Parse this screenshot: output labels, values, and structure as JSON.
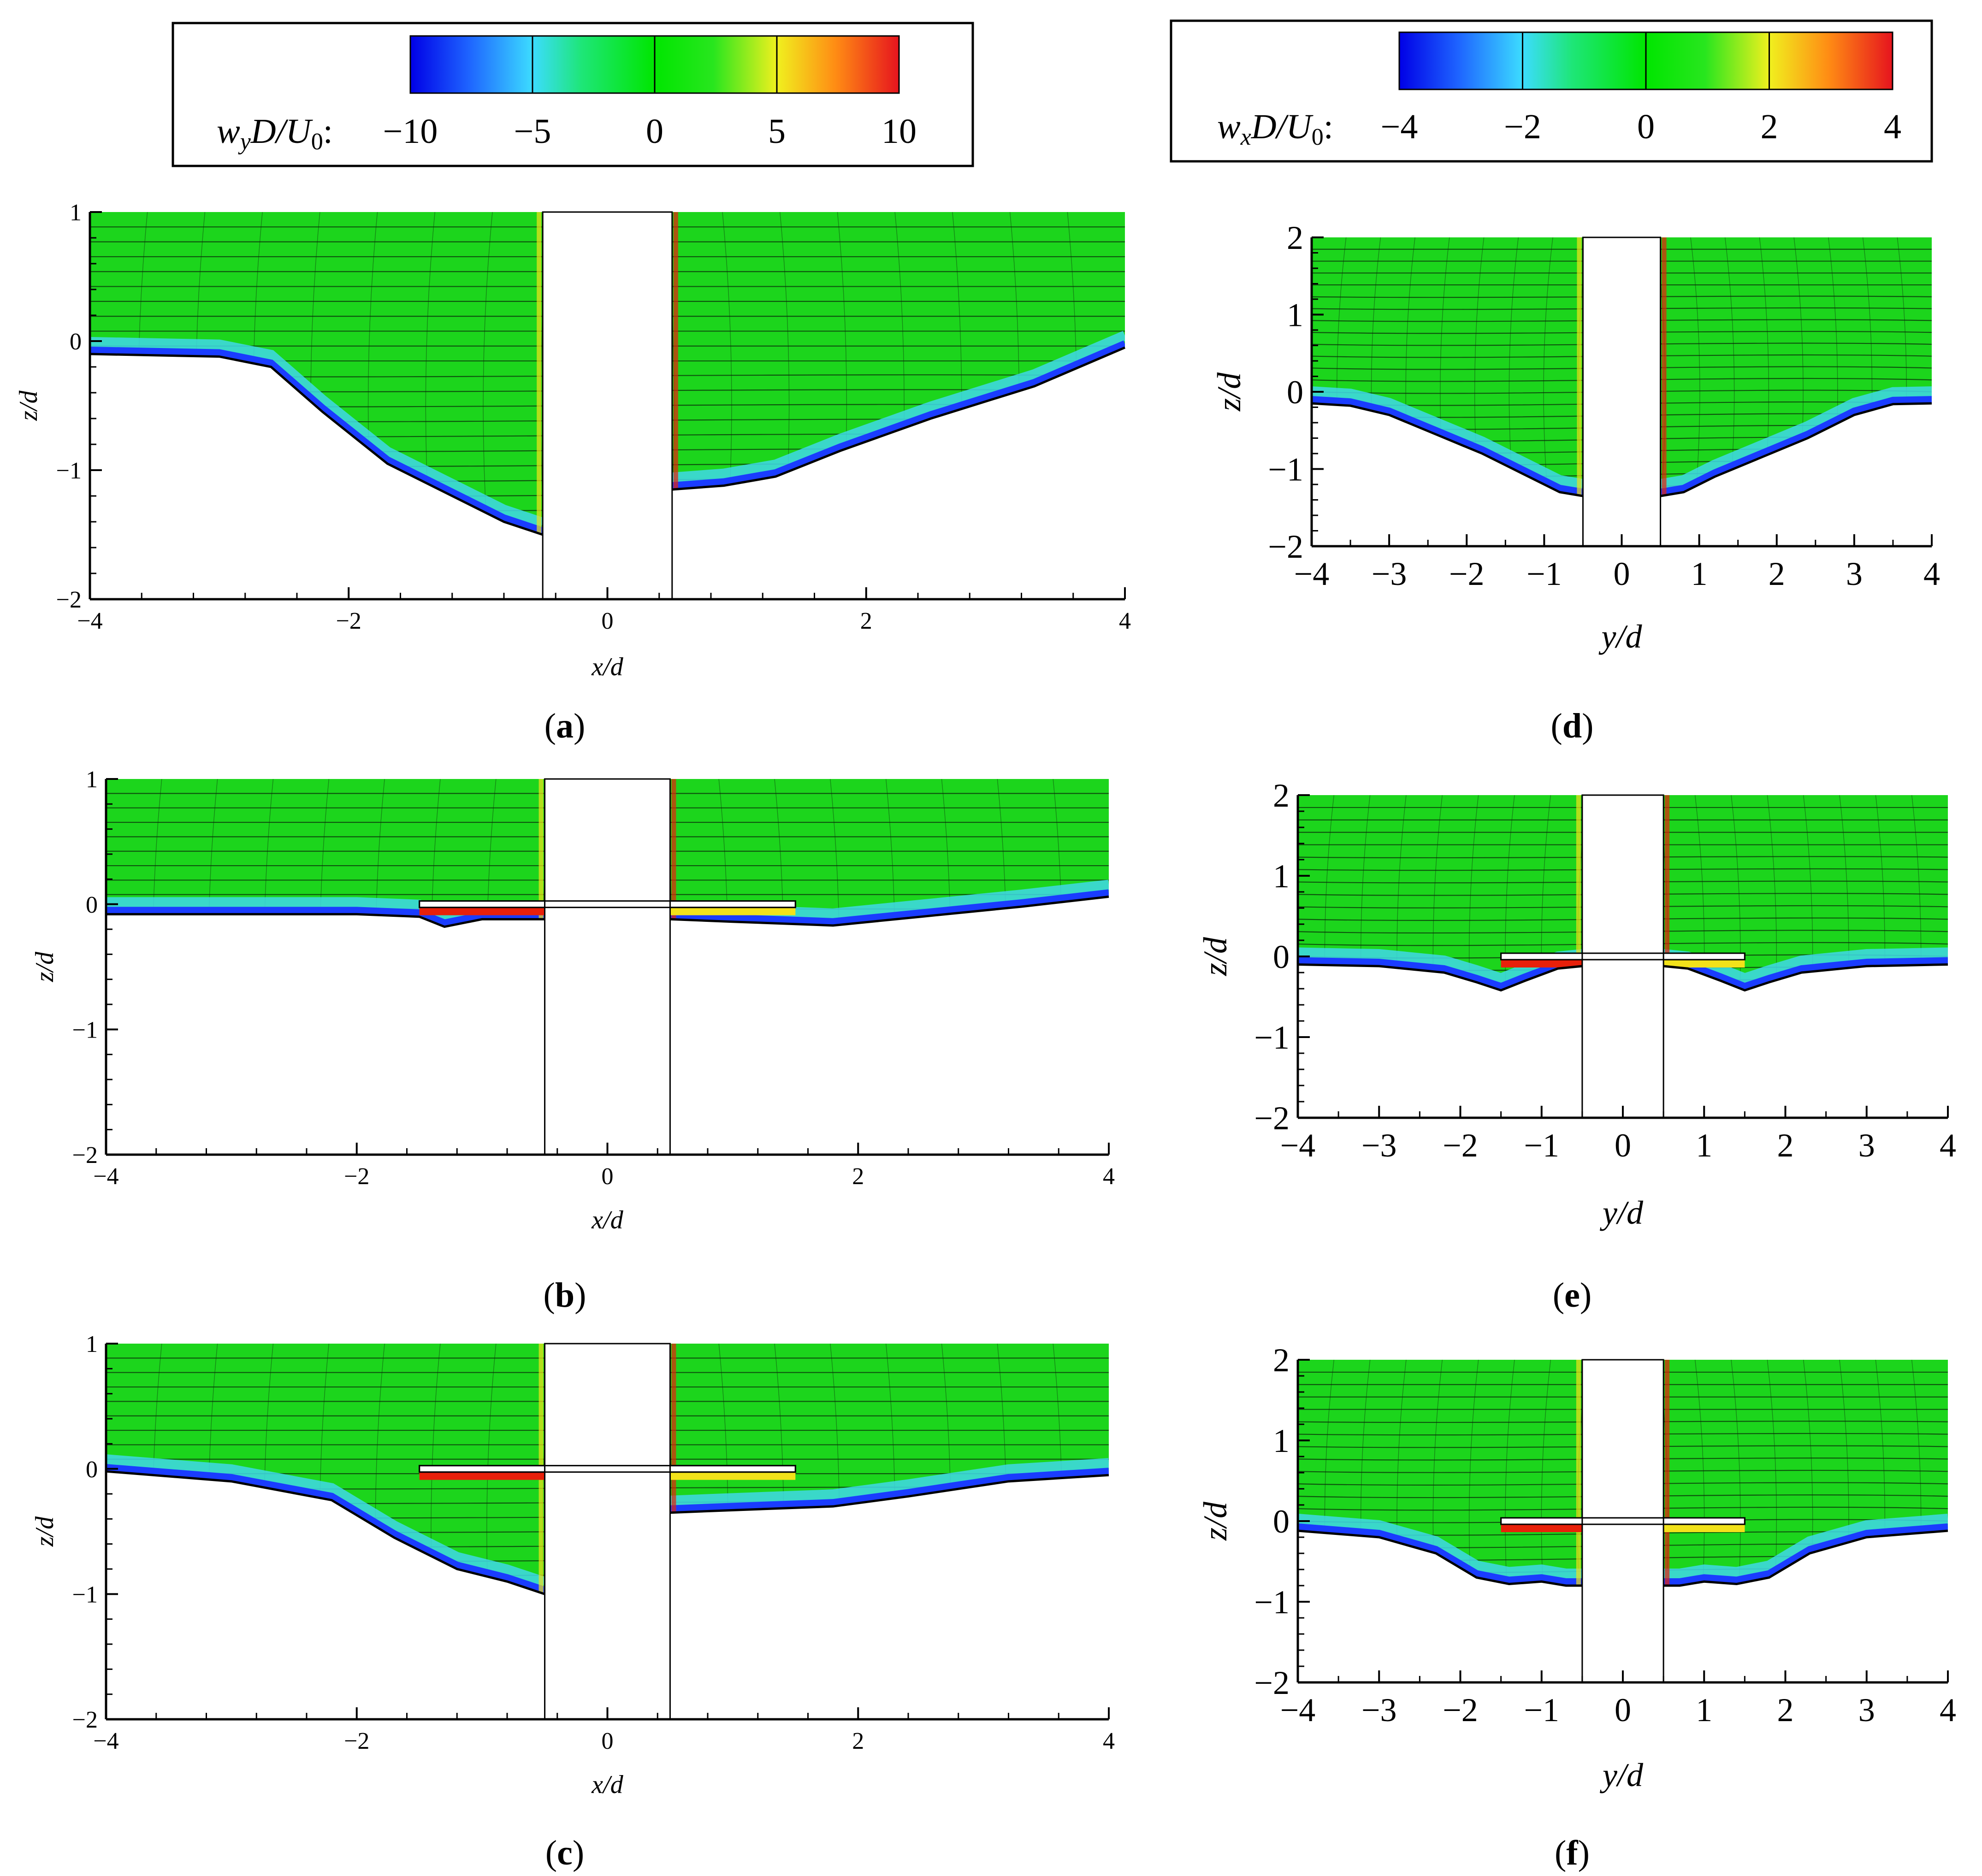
{
  "figure": {
    "colorbar_left": {
      "symbol": "w",
      "subscript": "y",
      "rest": "D/U",
      "sub0": "0",
      "colon": ":",
      "tick_labels": [
        "−10",
        "−5",
        "0",
        "5",
        "10"
      ],
      "values": [
        -10,
        -5,
        0,
        5,
        10
      ]
    },
    "colorbar_right": {
      "symbol": "w",
      "subscript": "x",
      "rest": "D/U",
      "sub0": "0",
      "colon": ":",
      "tick_labels": [
        "−4",
        "−2",
        "0",
        "2",
        "4"
      ],
      "values": [
        -4,
        -2,
        0,
        2,
        4
      ]
    },
    "colors": {
      "field_green": "#1cd51c",
      "band_blue": "#1a3cff",
      "band_cyan": "#3fd8e8",
      "band_red": "#e8200a",
      "band_yellow": "#f2e21a",
      "streamline": "#0a2a0a"
    }
  },
  "chart_data": [
    {
      "id": "a",
      "type": "contour",
      "panel_label": "(a)",
      "xlabel": "x/d",
      "ylabel": "z/d",
      "xlim": [
        -4,
        4
      ],
      "ylim": [
        -2,
        1
      ],
      "x_ticks": [
        -4,
        -2,
        0,
        2,
        4
      ],
      "x_tick_labels": [
        "−4",
        "−2",
        "0",
        "2",
        "4"
      ],
      "y_ticks": [
        -2,
        -1,
        0,
        1
      ],
      "y_tick_labels": [
        "−2",
        "−1",
        "0",
        "1"
      ],
      "pier_x": [
        -0.5,
        0.5
      ],
      "bed_left": [
        [
          -4,
          -0.1
        ],
        [
          -3,
          -0.12
        ],
        [
          -2.6,
          -0.2
        ],
        [
          -2.2,
          -0.55
        ],
        [
          -1.7,
          -0.95
        ],
        [
          -1.2,
          -1.2
        ],
        [
          -0.8,
          -1.4
        ],
        [
          -0.5,
          -1.5
        ]
      ],
      "bed_right": [
        [
          0.5,
          -1.15
        ],
        [
          0.9,
          -1.12
        ],
        [
          1.3,
          -1.05
        ],
        [
          1.8,
          -0.85
        ],
        [
          2.5,
          -0.6
        ],
        [
          3.3,
          -0.35
        ],
        [
          4,
          -0.05
        ]
      ],
      "collar": null
    },
    {
      "id": "b",
      "type": "contour",
      "panel_label": "(b)",
      "xlabel": "x/d",
      "ylabel": "z/d",
      "xlim": [
        -4,
        4
      ],
      "ylim": [
        -2,
        1
      ],
      "x_ticks": [
        -4,
        -2,
        0,
        2,
        4
      ],
      "x_tick_labels": [
        "−4",
        "−2",
        "0",
        "2",
        "4"
      ],
      "y_ticks": [
        -2,
        -1,
        0,
        1
      ],
      "y_tick_labels": [
        "−2",
        "−1",
        "0",
        "1"
      ],
      "pier_x": [
        -0.5,
        0.5
      ],
      "bed_left": [
        [
          -4,
          -0.08
        ],
        [
          -2,
          -0.08
        ],
        [
          -1.5,
          -0.1
        ],
        [
          -1.3,
          -0.18
        ],
        [
          -1.0,
          -0.12
        ],
        [
          -0.5,
          -0.12
        ]
      ],
      "bed_right": [
        [
          0.5,
          -0.12
        ],
        [
          1.0,
          -0.14
        ],
        [
          1.8,
          -0.17
        ],
        [
          2.5,
          -0.1
        ],
        [
          3.3,
          -0.02
        ],
        [
          4,
          0.06
        ]
      ],
      "collar": [
        -1.5,
        1.5
      ]
    },
    {
      "id": "c",
      "type": "contour",
      "panel_label": "(c)",
      "xlabel": "x/d",
      "ylabel": "z/d",
      "xlim": [
        -4,
        4
      ],
      "ylim": [
        -2,
        1
      ],
      "x_ticks": [
        -4,
        -2,
        0,
        2,
        4
      ],
      "x_tick_labels": [
        "−4",
        "−2",
        "0",
        "2",
        "4"
      ],
      "y_ticks": [
        -2,
        -1,
        0,
        1
      ],
      "y_tick_labels": [
        "−2",
        "−1",
        "0",
        "1"
      ],
      "pier_x": [
        -0.5,
        0.5
      ],
      "bed_left": [
        [
          -4,
          -0.02
        ],
        [
          -3,
          -0.1
        ],
        [
          -2.2,
          -0.25
        ],
        [
          -1.7,
          -0.55
        ],
        [
          -1.2,
          -0.8
        ],
        [
          -0.8,
          -0.9
        ],
        [
          -0.5,
          -1.0
        ]
      ],
      "bed_right": [
        [
          0.5,
          -0.35
        ],
        [
          1.0,
          -0.33
        ],
        [
          1.8,
          -0.3
        ],
        [
          2.4,
          -0.22
        ],
        [
          3.2,
          -0.1
        ],
        [
          4,
          -0.05
        ]
      ],
      "collar": [
        -1.5,
        1.5
      ]
    },
    {
      "id": "d",
      "type": "contour",
      "panel_label": "(d)",
      "xlabel": "y/d",
      "ylabel": "z/d",
      "xlim": [
        -4,
        4
      ],
      "ylim": [
        -2,
        2
      ],
      "x_ticks": [
        -4,
        -3,
        -2,
        -1,
        0,
        1,
        2,
        3,
        4
      ],
      "x_tick_labels": [
        "−4",
        "−3",
        "−2",
        "−1",
        "0",
        "1",
        "2",
        "3",
        "4"
      ],
      "y_ticks": [
        -2,
        -1,
        0,
        1,
        2
      ],
      "y_tick_labels": [
        "−2",
        "−1",
        "0",
        "1",
        "2"
      ],
      "pier_x": [
        -0.5,
        0.5
      ],
      "bed_left": [
        [
          -4,
          -0.15
        ],
        [
          -3.5,
          -0.18
        ],
        [
          -3,
          -0.3
        ],
        [
          -2.4,
          -0.55
        ],
        [
          -1.8,
          -0.8
        ],
        [
          -1.2,
          -1.1
        ],
        [
          -0.8,
          -1.3
        ],
        [
          -0.5,
          -1.35
        ]
      ],
      "bed_right": [
        [
          0.5,
          -1.35
        ],
        [
          0.8,
          -1.3
        ],
        [
          1.2,
          -1.1
        ],
        [
          1.8,
          -0.85
        ],
        [
          2.4,
          -0.6
        ],
        [
          3.0,
          -0.3
        ],
        [
          3.5,
          -0.16
        ],
        [
          4,
          -0.15
        ]
      ],
      "collar": null
    },
    {
      "id": "e",
      "type": "contour",
      "panel_label": "(e)",
      "xlabel": "y/d",
      "ylabel": "z/d",
      "xlim": [
        -4,
        4
      ],
      "ylim": [
        -2,
        2
      ],
      "x_ticks": [
        -4,
        -3,
        -2,
        -1,
        0,
        1,
        2,
        3,
        4
      ],
      "x_tick_labels": [
        "−4",
        "−3",
        "−2",
        "−1",
        "0",
        "1",
        "2",
        "3",
        "4"
      ],
      "y_ticks": [
        -2,
        -1,
        0,
        1,
        2
      ],
      "y_tick_labels": [
        "−2",
        "−1",
        "0",
        "1",
        "2"
      ],
      "pier_x": [
        -0.5,
        0.5
      ],
      "bed_left": [
        [
          -4,
          -0.1
        ],
        [
          -3,
          -0.12
        ],
        [
          -2.2,
          -0.2
        ],
        [
          -1.8,
          -0.32
        ],
        [
          -1.5,
          -0.42
        ],
        [
          -1.2,
          -0.3
        ],
        [
          -0.8,
          -0.15
        ],
        [
          -0.5,
          -0.12
        ]
      ],
      "bed_right": [
        [
          0.5,
          -0.12
        ],
        [
          0.8,
          -0.15
        ],
        [
          1.2,
          -0.3
        ],
        [
          1.5,
          -0.42
        ],
        [
          1.8,
          -0.32
        ],
        [
          2.2,
          -0.2
        ],
        [
          3,
          -0.12
        ],
        [
          4,
          -0.1
        ]
      ],
      "collar": [
        -1.5,
        1.5
      ]
    },
    {
      "id": "f",
      "type": "contour",
      "panel_label": "(f)",
      "xlabel": "y/d",
      "ylabel": "z/d",
      "xlim": [
        -4,
        4
      ],
      "ylim": [
        -2,
        2
      ],
      "x_ticks": [
        -4,
        -3,
        -2,
        -1,
        0,
        1,
        2,
        3,
        4
      ],
      "x_tick_labels": [
        "−4",
        "−3",
        "−2",
        "−1",
        "0",
        "1",
        "2",
        "3",
        "4"
      ],
      "y_ticks": [
        -2,
        -1,
        0,
        1,
        2
      ],
      "y_tick_labels": [
        "−2",
        "−1",
        "0",
        "1",
        "2"
      ],
      "pier_x": [
        -0.5,
        0.5
      ],
      "bed_left": [
        [
          -4,
          -0.12
        ],
        [
          -3,
          -0.2
        ],
        [
          -2.3,
          -0.4
        ],
        [
          -1.8,
          -0.7
        ],
        [
          -1.4,
          -0.78
        ],
        [
          -1.0,
          -0.75
        ],
        [
          -0.7,
          -0.8
        ],
        [
          -0.5,
          -0.8
        ]
      ],
      "bed_right": [
        [
          0.5,
          -0.8
        ],
        [
          0.7,
          -0.8
        ],
        [
          1.0,
          -0.75
        ],
        [
          1.4,
          -0.78
        ],
        [
          1.8,
          -0.7
        ],
        [
          2.3,
          -0.4
        ],
        [
          3,
          -0.2
        ],
        [
          4,
          -0.12
        ]
      ],
      "collar": [
        -1.5,
        1.5
      ]
    }
  ]
}
